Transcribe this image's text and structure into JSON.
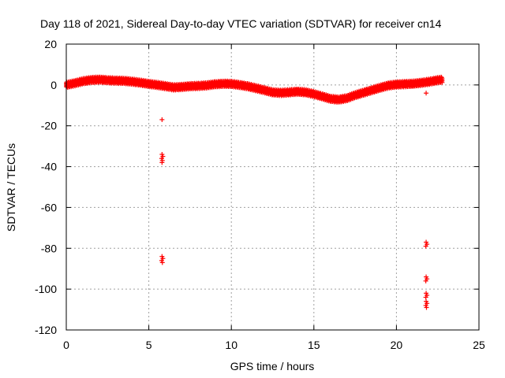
{
  "chart_data": {
    "type": "scatter",
    "title": "Day 118 of 2021, Sidereal Day-to-day VTEC variation (SDTVAR) for receiver cn14",
    "xlabel": "GPS time / hours",
    "ylabel": "SDTVAR / TECUs",
    "xlim": [
      0,
      25
    ],
    "ylim": [
      -120,
      20
    ],
    "xticks": [
      0,
      5,
      10,
      15,
      20,
      25
    ],
    "yticks": [
      20,
      0,
      -20,
      -40,
      -60,
      -80,
      -100,
      -120
    ],
    "grid": true,
    "marker": "+",
    "color": "#ff0000",
    "series": [
      {
        "name": "SDTVAR",
        "trend": [
          [
            0.0,
            0.0
          ],
          [
            0.5,
            0.8
          ],
          [
            1.0,
            1.8
          ],
          [
            1.5,
            2.4
          ],
          [
            2.0,
            2.6
          ],
          [
            2.5,
            2.3
          ],
          [
            3.0,
            2.1
          ],
          [
            3.5,
            2.0
          ],
          [
            4.0,
            1.6
          ],
          [
            4.5,
            1.1
          ],
          [
            5.0,
            0.5
          ],
          [
            5.5,
            0.0
          ],
          [
            6.0,
            -0.6
          ],
          [
            6.5,
            -1.2
          ],
          [
            7.0,
            -1.0
          ],
          [
            7.5,
            -0.6
          ],
          [
            8.0,
            -0.5
          ],
          [
            8.5,
            -0.2
          ],
          [
            9.0,
            0.3
          ],
          [
            9.5,
            0.6
          ],
          [
            10.0,
            0.5
          ],
          [
            10.5,
            0.0
          ],
          [
            11.0,
            -0.7
          ],
          [
            11.5,
            -1.6
          ],
          [
            12.0,
            -2.6
          ],
          [
            12.5,
            -3.6
          ],
          [
            13.0,
            -3.9
          ],
          [
            13.5,
            -3.6
          ],
          [
            14.0,
            -3.3
          ],
          [
            14.5,
            -3.6
          ],
          [
            15.0,
            -4.5
          ],
          [
            15.5,
            -5.6
          ],
          [
            16.0,
            -6.8
          ],
          [
            16.5,
            -7.2
          ],
          [
            17.0,
            -6.5
          ],
          [
            17.5,
            -5.0
          ],
          [
            18.0,
            -3.8
          ],
          [
            18.5,
            -2.6
          ],
          [
            19.0,
            -1.4
          ],
          [
            19.5,
            -0.3
          ],
          [
            20.0,
            0.2
          ],
          [
            20.5,
            0.4
          ],
          [
            21.0,
            0.6
          ],
          [
            21.5,
            1.0
          ],
          [
            22.0,
            1.6
          ],
          [
            22.5,
            2.3
          ],
          [
            22.8,
            2.6
          ]
        ],
        "outliers": [
          [
            5.8,
            -17
          ],
          [
            5.8,
            -34
          ],
          [
            5.85,
            -35
          ],
          [
            5.78,
            -36
          ],
          [
            5.82,
            -37
          ],
          [
            5.8,
            -38
          ],
          [
            5.8,
            -84
          ],
          [
            5.85,
            -85
          ],
          [
            5.78,
            -86
          ],
          [
            5.82,
            -87
          ],
          [
            21.8,
            -4
          ],
          [
            21.8,
            -77
          ],
          [
            21.85,
            -78
          ],
          [
            21.78,
            -79
          ],
          [
            21.8,
            -94
          ],
          [
            21.85,
            -95
          ],
          [
            21.78,
            -96
          ],
          [
            21.8,
            -102
          ],
          [
            21.85,
            -103
          ],
          [
            21.78,
            -104
          ],
          [
            21.8,
            -106
          ],
          [
            21.85,
            -107
          ],
          [
            21.78,
            -108
          ],
          [
            21.82,
            -109
          ]
        ]
      }
    ]
  }
}
